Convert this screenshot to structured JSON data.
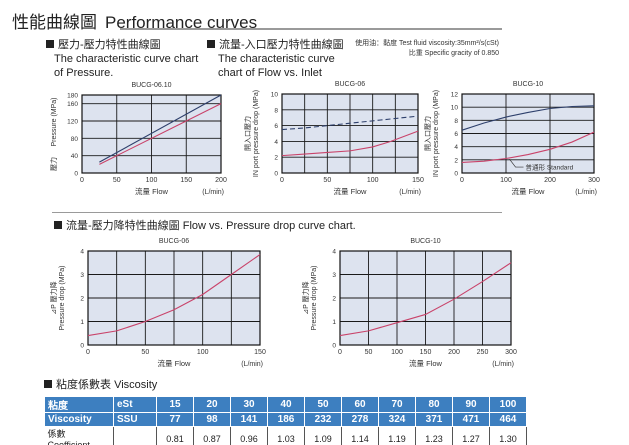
{
  "title": {
    "zh": "性能曲線圖",
    "en": "Performance curves"
  },
  "sections": {
    "pressure": {
      "zh": "壓力-壓力特性曲線圖",
      "en1": "The characteristic curve chart",
      "en2": "of Pressure."
    },
    "inlet": {
      "zh": "流量-入口壓力特性曲線圖",
      "en1": "The characteristic curve",
      "en2": "chart of Flow vs. Inlet"
    },
    "drop": {
      "zh": "流量-壓力降特性曲線圖",
      "en": "Flow vs. Pressure drop curve chart."
    },
    "viscosity": {
      "zh": "粘度係數表",
      "en": "Viscosity"
    }
  },
  "test_note": {
    "line1": "使用油：黏度 Test fluid viscosity:35mm²/s(cSt)",
    "line2": "比重 Specific gracity of 0.850"
  },
  "chart_data": [
    {
      "type": "line",
      "title": "BUCG-06.10",
      "xlabel": "流量  Flow",
      "xunit": "(L/min)",
      "ylabel_zh": "壓力",
      "ylabel": "Pressure (MPa)",
      "xlim": [
        0,
        200
      ],
      "ylim": [
        0,
        180
      ],
      "xticks": [
        0,
        50,
        100,
        150,
        200
      ],
      "yticks": [
        0,
        40,
        80,
        120,
        160,
        180
      ],
      "series": [
        {
          "name": "upper",
          "color": "#2d3f6b",
          "dash": false,
          "x": [
            25,
            200
          ],
          "y": [
            25,
            180
          ]
        },
        {
          "name": "lower",
          "color": "#c9436a",
          "dash": false,
          "x": [
            25,
            200
          ],
          "y": [
            20,
            160
          ]
        }
      ]
    },
    {
      "type": "line",
      "title": "BUCG-06",
      "xlabel": "流量  Flow",
      "xunit": "(L/min)",
      "ylabel_zh": "開入口壓力",
      "ylabel": "IN port pressure drop (MPa)",
      "xlim": [
        0,
        150
      ],
      "ylim": [
        0,
        10
      ],
      "xticks": [
        0,
        50,
        100,
        150
      ],
      "xgrid": 25,
      "yticks": [
        0,
        2,
        4,
        6,
        8,
        10
      ],
      "series": [
        {
          "name": "dashed",
          "color": "#2d3f6b",
          "dash": true,
          "x": [
            0,
            25,
            50,
            75,
            100,
            125,
            150
          ],
          "y": [
            5.5,
            5.7,
            6.0,
            6.3,
            6.6,
            6.9,
            7.2
          ]
        },
        {
          "name": "standard",
          "color": "#c9436a",
          "dash": false,
          "x": [
            0,
            25,
            50,
            75,
            100,
            120,
            150
          ],
          "y": [
            2.2,
            2.4,
            2.6,
            2.8,
            3.3,
            4.0,
            5.3
          ]
        }
      ]
    },
    {
      "type": "line",
      "title": "BUCG-10",
      "xlabel": "流量  Flow",
      "xunit": "(L/min)",
      "ylabel_zh": "開入口壓力",
      "ylabel": "IN port pressure drop (MPa)",
      "xlim": [
        0,
        300
      ],
      "ylim": [
        0,
        12
      ],
      "xticks": [
        0,
        100,
        200,
        300
      ],
      "yticks": [
        0,
        2,
        4,
        6,
        8,
        10,
        12
      ],
      "annotation": "普通形 Standard",
      "series": [
        {
          "name": "upper",
          "color": "#2d3f6b",
          "dash": false,
          "x": [
            0,
            50,
            100,
            150,
            200,
            250,
            300
          ],
          "y": [
            6.5,
            7.6,
            8.5,
            9.2,
            9.8,
            10.1,
            10.2
          ]
        },
        {
          "name": "standard",
          "color": "#c9436a",
          "dash": false,
          "x": [
            0,
            50,
            100,
            150,
            200,
            250,
            300
          ],
          "y": [
            1.6,
            1.8,
            2.2,
            2.8,
            3.6,
            4.7,
            6.2
          ]
        }
      ]
    },
    {
      "type": "line",
      "title": "BUCG-06",
      "xlabel": "流量  Flow",
      "xunit": "(L/min)",
      "ylabel_zh": "⊿P 壓力降",
      "ylabel": "Pressure drop (MPa)",
      "xlim": [
        0,
        150
      ],
      "ylim": [
        0,
        4
      ],
      "xticks": [
        0,
        50,
        100,
        150
      ],
      "xgrid": 25,
      "yticks": [
        0,
        1,
        2,
        3,
        4
      ],
      "series": [
        {
          "name": "drop",
          "color": "#c9436a",
          "dash": false,
          "x": [
            0,
            25,
            50,
            75,
            100,
            125,
            150
          ],
          "y": [
            0.4,
            0.6,
            1.0,
            1.5,
            2.15,
            3.0,
            3.85
          ]
        }
      ]
    },
    {
      "type": "line",
      "title": "BUCG-10",
      "xlabel": "流量  Flow",
      "xunit": "(L/min)",
      "ylabel_zh": "⊿P 壓力降",
      "ylabel": "Pressure drop (MPa)",
      "xlim": [
        0,
        300
      ],
      "ylim": [
        0,
        4
      ],
      "xticks": [
        0,
        50,
        100,
        150,
        200,
        250,
        300
      ],
      "yticks": [
        0,
        1,
        2,
        3,
        4
      ],
      "series": [
        {
          "name": "drop",
          "color": "#c9436a",
          "dash": false,
          "x": [
            0,
            50,
            100,
            150,
            200,
            250,
            300
          ],
          "y": [
            0.4,
            0.6,
            0.95,
            1.3,
            1.95,
            2.7,
            3.5
          ]
        }
      ]
    }
  ],
  "viscosity_table": {
    "row1": [
      "粘度",
      "eSt",
      "15",
      "20",
      "30",
      "40",
      "50",
      "60",
      "70",
      "80",
      "90",
      "100"
    ],
    "row2": [
      "Viscosity",
      "SSU",
      "77",
      "98",
      "141",
      "186",
      "232",
      "278",
      "324",
      "371",
      "471",
      "464"
    ],
    "row3": [
      "係數 Coefficient",
      "",
      "0.81",
      "0.87",
      "0.96",
      "1.03",
      "1.09",
      "1.14",
      "1.19",
      "1.23",
      "1.27",
      "1.30"
    ]
  },
  "colors": {
    "plot_bg": "#dde3ef",
    "grid": "#1a1a1a",
    "table_header": "#3d7fc0",
    "rule": "#9a9a9a"
  }
}
